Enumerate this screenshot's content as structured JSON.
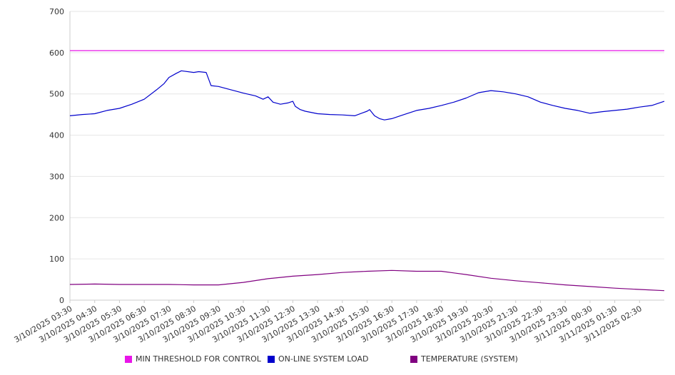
{
  "chart_data": {
    "type": "line",
    "title": "",
    "xlabel": "",
    "ylabel": "",
    "ylim": [
      0,
      700
    ],
    "yticks": [
      0,
      100,
      200,
      300,
      400,
      500,
      600,
      700
    ],
    "grid": true,
    "legend_position": "bottom",
    "x_tick_labels": [
      "3/10/2025 03:30",
      "3/10/2025 04:30",
      "3/10/2025 05:30",
      "3/10/2025 06:30",
      "3/10/2025 07:30",
      "3/10/2025 08:30",
      "3/10/2025 09:30",
      "3/10/2025 10:30",
      "3/10/2025 11:30",
      "3/10/2025 12:30",
      "3/10/2025 13:30",
      "3/10/2025 14:30",
      "3/10/2025 15:30",
      "3/10/2025 16:30",
      "3/10/2025 17:30",
      "3/10/2025 18:30",
      "3/10/2025 19:30",
      "3/10/2025 20:30",
      "3/10/2025 21:30",
      "3/10/2025 22:30",
      "3/10/2025 23:30",
      "3/11/2025 00:30",
      "3/11/2025 01:30",
      "3/11/2025 02:30"
    ],
    "x_hours_at_ticks": [
      3.5,
      4.5,
      5.5,
      6.5,
      7.5,
      8.5,
      9.5,
      10.5,
      11.5,
      12.5,
      13.5,
      14.5,
      15.5,
      16.5,
      17.5,
      18.5,
      19.5,
      20.5,
      21.5,
      22.5,
      23.5,
      24.5,
      25.5,
      26.5
    ],
    "x_range_hours": [
      3.5,
      27.5
    ],
    "series": [
      {
        "name": "MIN THRESHOLD FOR CONTROL",
        "color": "#e815e8",
        "x_hours": [
          3.5,
          27.5
        ],
        "values": [
          605,
          605
        ]
      },
      {
        "name": "ON-LINE SYSTEM LOAD",
        "color": "#0000cc",
        "x_hours": [
          3.5,
          4.0,
          4.5,
          5.0,
          5.5,
          6.0,
          6.5,
          7.0,
          7.3,
          7.5,
          7.8,
          8.0,
          8.5,
          8.7,
          9.0,
          9.2,
          9.5,
          10.0,
          10.5,
          11.0,
          11.3,
          11.5,
          11.7,
          12.0,
          12.3,
          12.5,
          12.6,
          12.8,
          13.0,
          13.5,
          14.0,
          14.5,
          15.0,
          15.5,
          15.6,
          15.8,
          16.0,
          16.2,
          16.5,
          17.0,
          17.5,
          18.0,
          18.5,
          19.0,
          19.5,
          20.0,
          20.5,
          21.0,
          21.5,
          22.0,
          22.5,
          23.0,
          23.5,
          24.0,
          24.5,
          25.0,
          25.5,
          26.0,
          26.5,
          27.0,
          27.5
        ],
        "values": [
          447,
          450,
          452,
          460,
          465,
          475,
          487,
          510,
          525,
          540,
          550,
          556,
          552,
          554,
          552,
          520,
          518,
          510,
          502,
          495,
          487,
          493,
          480,
          475,
          478,
          482,
          470,
          462,
          458,
          452,
          450,
          449,
          447,
          458,
          462,
          447,
          440,
          437,
          440,
          450,
          460,
          465,
          472,
          480,
          490,
          503,
          508,
          505,
          500,
          493,
          480,
          472,
          465,
          460,
          453,
          457,
          460,
          463,
          468,
          472,
          482
        ]
      },
      {
        "name": "TEMPERATURE (SYSTEM)",
        "color": "#800080",
        "x_hours": [
          3.5,
          4.5,
          5.5,
          6.5,
          7.5,
          8.5,
          9.5,
          10.5,
          11.5,
          12.5,
          13.5,
          14.5,
          15.5,
          16.5,
          17.5,
          18.5,
          19.5,
          20.5,
          21.5,
          22.5,
          23.5,
          24.5,
          25.5,
          26.5,
          27.5
        ],
        "values": [
          38,
          39,
          38,
          38,
          38,
          37,
          37,
          43,
          52,
          58,
          62,
          67,
          70,
          72,
          70,
          70,
          62,
          53,
          47,
          42,
          37,
          33,
          29,
          26,
          23
        ]
      }
    ]
  }
}
